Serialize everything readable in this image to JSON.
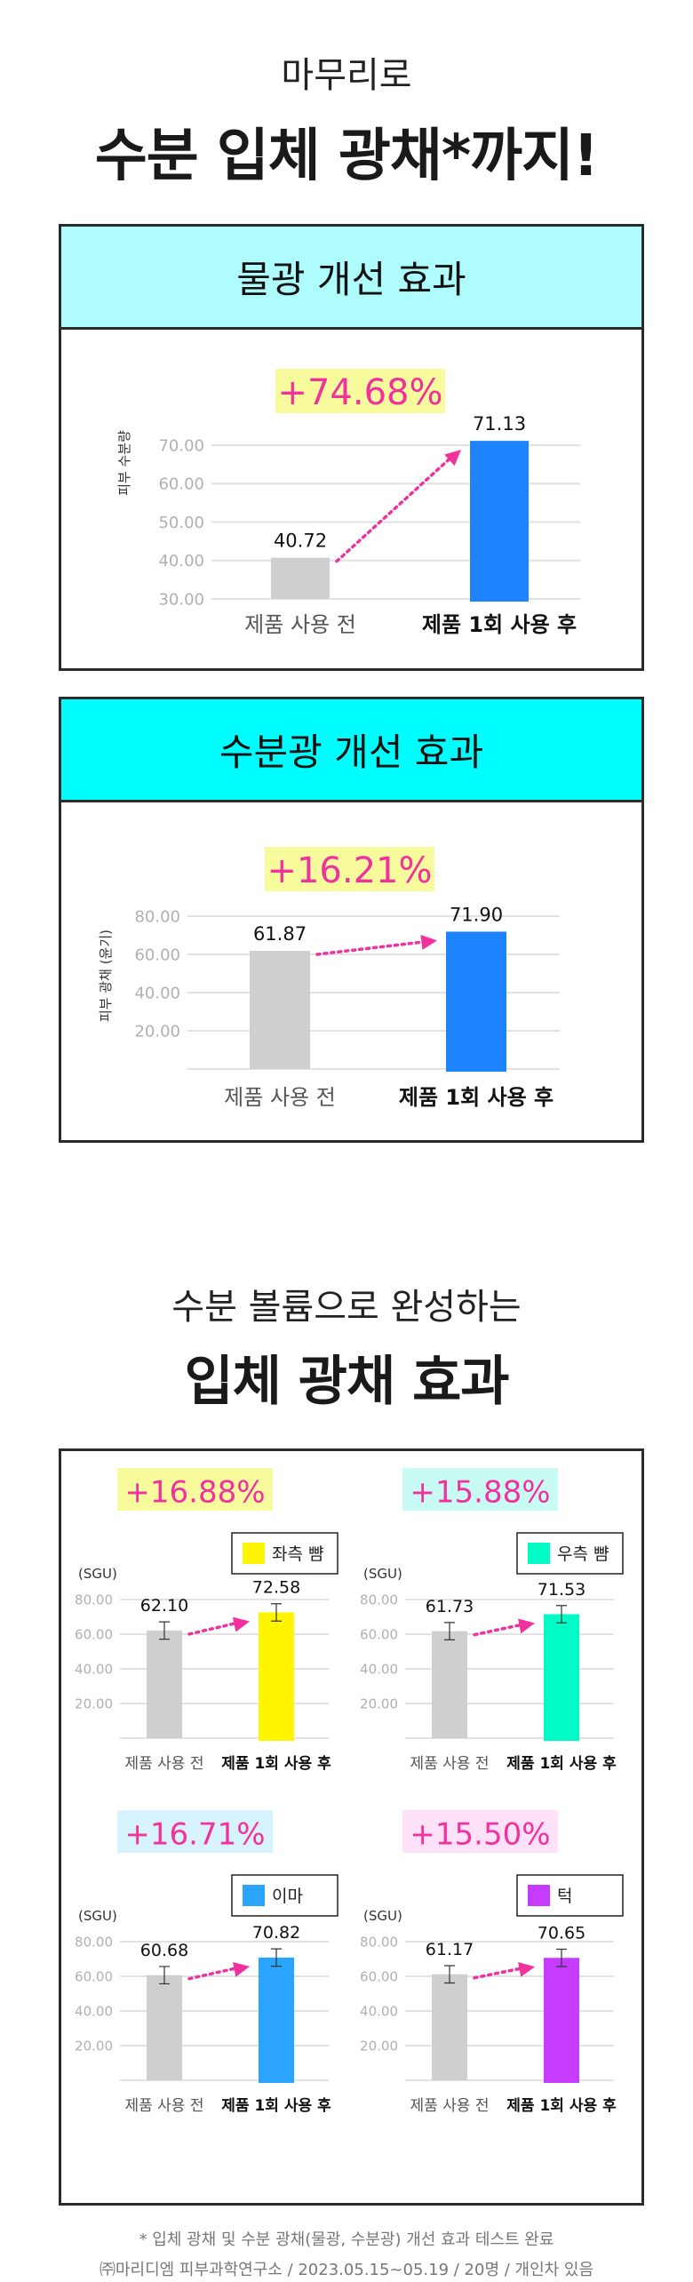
{
  "intro": {
    "subtitle": "마무리로",
    "title": "수분 입체 광채*까지!"
  },
  "section1": {
    "header": "물광 개선 효과",
    "header_color": "#aefcfc"
  },
  "section2": {
    "header": "수분광 개선 효과",
    "header_color": "#00fdfd"
  },
  "section3": {
    "subtitle": "수분 볼륨으로 완성하는",
    "title": "입체 광채 효과"
  },
  "colors": {
    "accent_pink": "#f0319e",
    "before_bar": "#cfcfcf",
    "badge_yellow": "#f7fb9c"
  },
  "chart_data": [
    {
      "type": "bar",
      "badge": "+74.68%",
      "badge_color": "#f7fb9c",
      "ylabel": "피부 수분량",
      "yticks": [
        "70.00",
        "60.00",
        "50.00",
        "40.00",
        "30.00"
      ],
      "ylim": [
        30,
        70
      ],
      "categories": [
        "제품 사용 전",
        "제품 1회 사용 후"
      ],
      "values": [
        40.72,
        71.13
      ],
      "value_labels": [
        "40.72",
        "71.13"
      ],
      "colors": [
        "#cfcfcf",
        "#1e84fd"
      ],
      "grid": true
    },
    {
      "type": "bar",
      "badge": "+16.21%",
      "badge_color": "#f7fb9c",
      "ylabel": "피부 광채 (윤기)",
      "yticks": [
        "80.00",
        "60.00",
        "40.00",
        "20.00"
      ],
      "ylim": [
        0,
        80
      ],
      "categories": [
        "제품 사용 전",
        "제품 1회 사용 후"
      ],
      "values": [
        61.87,
        71.9
      ],
      "value_labels": [
        "61.87",
        "71.90"
      ],
      "colors": [
        "#cfcfcf",
        "#1e84fd"
      ],
      "grid": true
    },
    {
      "type": "bar",
      "badge": "+16.88%",
      "badge_color": "#f7fb9c",
      "legend": "좌측 뺨",
      "unit": "(SGU)",
      "yticks": [
        "80.00",
        "60.00",
        "40.00",
        "20.00"
      ],
      "ylim": [
        0,
        80
      ],
      "categories": [
        "제품 사용 전",
        "제품 1회 사용 후"
      ],
      "values": [
        62.1,
        72.58
      ],
      "value_labels": [
        "62.10",
        "72.58"
      ],
      "colors": [
        "#cfcfcf",
        "#fff500"
      ],
      "error": 5,
      "grid": true
    },
    {
      "type": "bar",
      "badge": "+15.88%",
      "badge_color": "#c9fbf5",
      "legend": "우측 뺨",
      "unit": "(SGU)",
      "yticks": [
        "80.00",
        "60.00",
        "40.00",
        "20.00"
      ],
      "ylim": [
        0,
        80
      ],
      "categories": [
        "제품 사용 전",
        "제품 1회 사용 후"
      ],
      "values": [
        61.73,
        71.53
      ],
      "value_labels": [
        "61.73",
        "71.53"
      ],
      "colors": [
        "#cfcfcf",
        "#00fcc6"
      ],
      "error": 5,
      "grid": true
    },
    {
      "type": "bar",
      "badge": "+16.71%",
      "badge_color": "#d7f3fd",
      "legend": "이마",
      "unit": "(SGU)",
      "yticks": [
        "80.00",
        "60.00",
        "40.00",
        "20.00"
      ],
      "ylim": [
        0,
        80
      ],
      "categories": [
        "제품 사용 전",
        "제품 1회 사용 후"
      ],
      "values": [
        60.68,
        70.82
      ],
      "value_labels": [
        "60.68",
        "70.82"
      ],
      "colors": [
        "#cfcfcf",
        "#2aa4ff"
      ],
      "error": 5,
      "grid": true
    },
    {
      "type": "bar",
      "badge": "+15.50%",
      "badge_color": "#ffe2f8",
      "legend": "턱",
      "unit": "(SGU)",
      "yticks": [
        "80.00",
        "60.00",
        "40.00",
        "20.00"
      ],
      "ylim": [
        0,
        80
      ],
      "categories": [
        "제품 사용 전",
        "제품 1회 사용 후"
      ],
      "values": [
        61.17,
        70.65
      ],
      "value_labels": [
        "61.17",
        "70.65"
      ],
      "colors": [
        "#cfcfcf",
        "#c63cff"
      ],
      "error": 5,
      "grid": true
    }
  ],
  "footnote": {
    "line1": "* 입체 광채 및 수분 광채(물광, 수분광) 개선 효과 테스트 완료",
    "line2": "㈜마리디엠 피부과학연구소 / 2023.05.15~05.19 / 20명 / 개인차 있음"
  }
}
